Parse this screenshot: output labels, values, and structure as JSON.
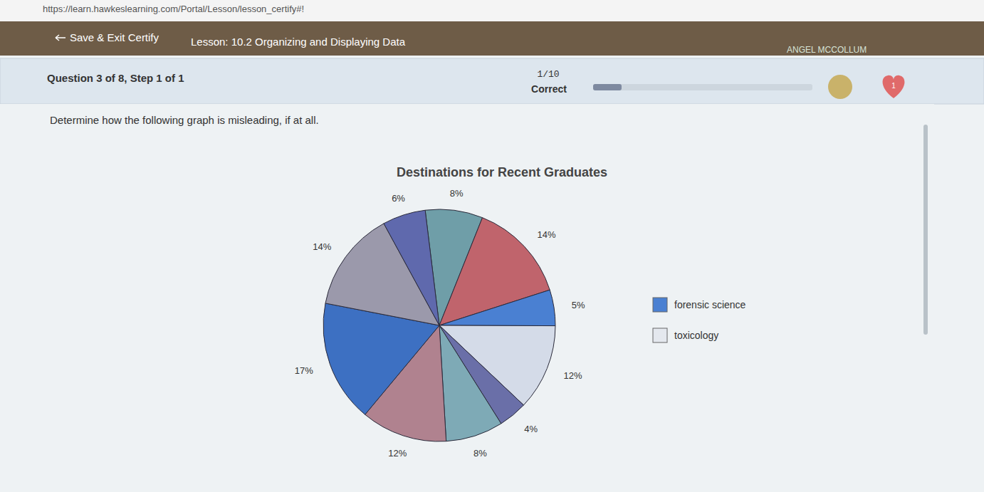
{
  "browser": {
    "url": "https://learn.hawkeslearning.com/Portal/Lesson/lesson_certify#!"
  },
  "header": {
    "back": "Save & Exit Certify",
    "lesson": "Lesson: 10.2 Organizing and Displaying Data",
    "user": "ANGEL MCCOLLUM"
  },
  "status": {
    "question": "Question 3 of 8, Step 1 of 1",
    "score": "1/10",
    "result": "Correct",
    "lives": 1
  },
  "prompt": "Determine how the following graph is misleading, if at all.",
  "chart_data": {
    "type": "pie",
    "title": "Destinations for Recent Graduates",
    "values": [
      8,
      14,
      5,
      12,
      4,
      8,
      12,
      17,
      14,
      6
    ],
    "value_labels": [
      "8%",
      "14%",
      "5%",
      "12%",
      "4%",
      "8%",
      "12%",
      "17%",
      "14%",
      "6%"
    ],
    "colors": [
      "#6f9ea8",
      "#c0646c",
      "#4a80d2",
      "#d4dbe8",
      "#6a6fa8",
      "#7eaab6",
      "#b0828f",
      "#3d70c2",
      "#9b99ab",
      "#5f69ad"
    ],
    "data_labels": true,
    "legend": "right",
    "legend_items": [
      {
        "name": "forensic science",
        "color": "#4a80d2"
      },
      {
        "name": "toxicology",
        "color": "#e4e8ee"
      }
    ]
  }
}
